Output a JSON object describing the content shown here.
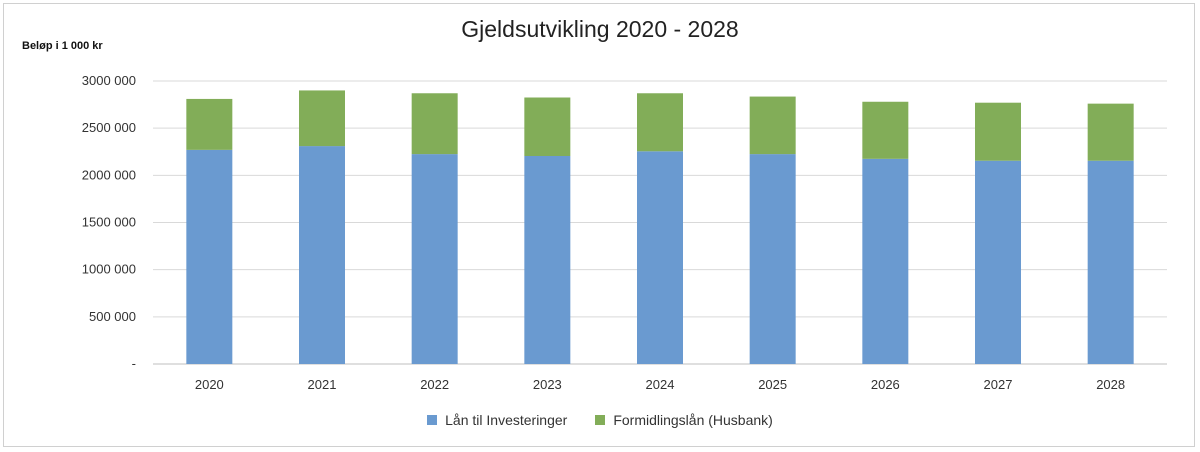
{
  "chart_data": {
    "type": "bar",
    "stacked": true,
    "title": "Gjeldsutvikling 2020 - 2028",
    "ylabel": "Beløp i 1 000 kr",
    "xlabel": "",
    "ylim": [
      0,
      3000000
    ],
    "yticks": [
      0,
      500000,
      1000000,
      1500000,
      2000000,
      2500000,
      3000000
    ],
    "ytick_labels": [
      "-",
      "500 000",
      "1000 000",
      "1500 000",
      "2000 000",
      "2500 000",
      "3000 000"
    ],
    "grid": true,
    "legend_position": "bottom",
    "categories": [
      "2020",
      "2021",
      "2022",
      "2023",
      "2024",
      "2025",
      "2026",
      "2027",
      "2028"
    ],
    "series": [
      {
        "name": "Lån til Investeringer",
        "color": "#6a9ad0",
        "values": [
          2270000,
          2310000,
          2225000,
          2205000,
          2255000,
          2225000,
          2175000,
          2155000,
          2155000
        ]
      },
      {
        "name": "Formidlingslån (Husbank)",
        "color": "#82ad58",
        "values": [
          540000,
          590000,
          645000,
          620000,
          615000,
          610000,
          605000,
          615000,
          605000
        ]
      }
    ]
  }
}
